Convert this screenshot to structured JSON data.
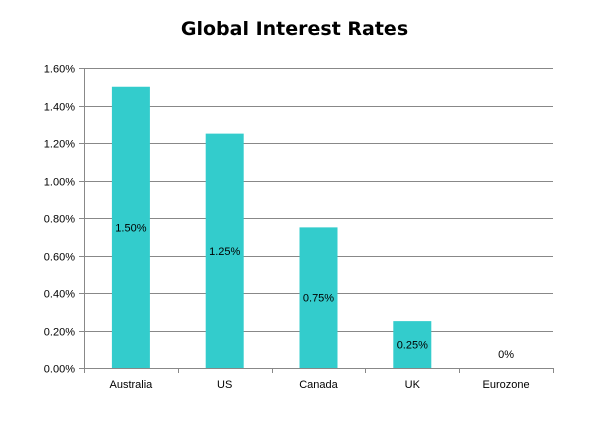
{
  "chart_data": {
    "type": "bar",
    "title": "Global Interest Rates",
    "categories": [
      "Australia",
      "US",
      "Canada",
      "UK",
      "Eurozone"
    ],
    "values": [
      1.5,
      1.25,
      0.75,
      0.25,
      0
    ],
    "data_labels": [
      "1.50%",
      "1.25%",
      "0.75%",
      "0.25%",
      "0%"
    ],
    "ylim": [
      0,
      1.6
    ],
    "y_ticks": [
      0,
      0.2,
      0.4,
      0.6,
      0.8,
      1.0,
      1.2,
      1.4,
      1.6
    ],
    "y_tick_labels": [
      "0.00%",
      "0.20%",
      "0.40%",
      "0.60%",
      "0.80%",
      "1.00%",
      "1.20%",
      "1.40%",
      "1.60%"
    ],
    "xlabel": "",
    "ylabel": "",
    "grid": true,
    "legend": "none",
    "bar_color": "#33CCCC"
  }
}
